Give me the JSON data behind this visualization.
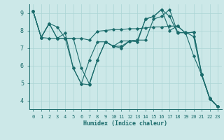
{
  "xlabel": "Humidex (Indice chaleur)",
  "bg_color": "#cce8e8",
  "line_color": "#1a6b6b",
  "grid_color": "#aad4d4",
  "xlim": [
    -0.5,
    23.5
  ],
  "ylim": [
    3.5,
    9.5
  ],
  "yticks": [
    4,
    5,
    6,
    7,
    8,
    9
  ],
  "xticks": [
    0,
    1,
    2,
    3,
    4,
    5,
    6,
    7,
    8,
    9,
    10,
    11,
    12,
    13,
    14,
    15,
    16,
    17,
    18,
    19,
    20,
    21,
    22,
    23
  ],
  "lines": [
    [
      9.1,
      7.6,
      8.4,
      7.55,
      7.85,
      5.85,
      4.95,
      4.9,
      6.3,
      7.35,
      7.1,
      7.0,
      7.4,
      7.35,
      8.65,
      8.8,
      9.2,
      8.0,
      8.25,
      7.85,
      6.55,
      5.45,
      4.1,
      3.65
    ],
    [
      9.1,
      7.6,
      8.4,
      8.2,
      7.55,
      7.55,
      7.55,
      7.45,
      7.95,
      8.0,
      8.05,
      8.05,
      8.1,
      8.1,
      8.15,
      8.2,
      8.2,
      8.25,
      8.25,
      7.85,
      7.9,
      5.5,
      4.15,
      3.65
    ],
    [
      9.1,
      7.6,
      8.4,
      7.55,
      7.55,
      7.55,
      5.85,
      4.95,
      6.3,
      7.35,
      7.1,
      7.1,
      7.4,
      7.45,
      7.45,
      8.65,
      8.8,
      9.2,
      7.9,
      7.85,
      7.9,
      5.5,
      4.1,
      3.65
    ],
    [
      9.1,
      7.6,
      7.55,
      7.55,
      7.55,
      5.85,
      4.95,
      6.3,
      7.35,
      7.35,
      7.1,
      7.4,
      7.4,
      7.45,
      8.65,
      8.8,
      9.2,
      8.8,
      7.85,
      7.9,
      7.65,
      5.45,
      4.1,
      3.65
    ]
  ]
}
